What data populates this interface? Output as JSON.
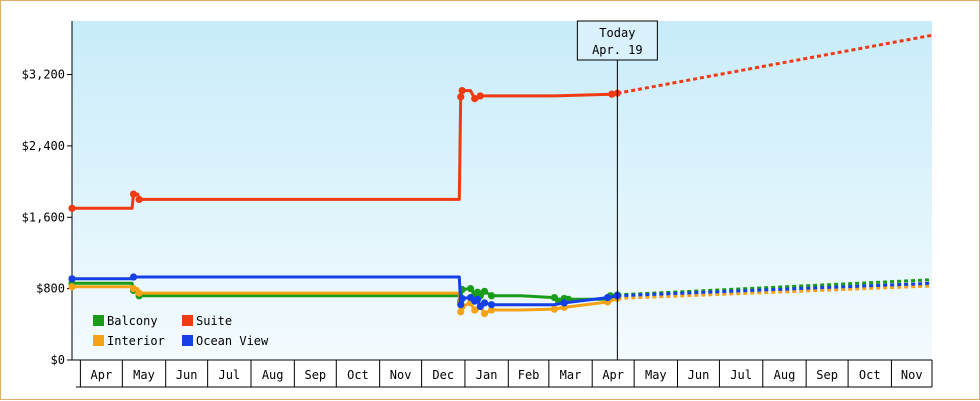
{
  "chart_data": {
    "type": "line",
    "title": "",
    "xlabel": "",
    "ylabel": "",
    "ylim": [
      0,
      3800
    ],
    "y_ticks": [
      {
        "value": 0,
        "label": "$0"
      },
      {
        "value": 800,
        "label": "$800"
      },
      {
        "value": 1600,
        "label": "$1,600"
      },
      {
        "value": 2400,
        "label": "$2,400"
      },
      {
        "value": 3200,
        "label": "$3,200"
      }
    ],
    "x_range": [
      "2023-03-26",
      "2024-11-30"
    ],
    "x_months": [
      {
        "label": "Apr",
        "start": "2023-04-01",
        "end": "2023-05-01"
      },
      {
        "label": "May",
        "start": "2023-05-01",
        "end": "2023-06-01"
      },
      {
        "label": "Jun",
        "start": "2023-06-01",
        "end": "2023-07-01"
      },
      {
        "label": "Jul",
        "start": "2023-07-01",
        "end": "2023-08-01"
      },
      {
        "label": "Aug",
        "start": "2023-08-01",
        "end": "2023-09-01"
      },
      {
        "label": "Sep",
        "start": "2023-09-01",
        "end": "2023-10-01"
      },
      {
        "label": "Oct",
        "start": "2023-10-01",
        "end": "2023-11-01"
      },
      {
        "label": "Nov",
        "start": "2023-11-01",
        "end": "2023-12-01"
      },
      {
        "label": "Dec",
        "start": "2023-12-01",
        "end": "2024-01-01"
      },
      {
        "label": "Jan",
        "start": "2024-01-01",
        "end": "2024-02-01"
      },
      {
        "label": "Feb",
        "start": "2024-02-01",
        "end": "2024-03-01"
      },
      {
        "label": "Mar",
        "start": "2024-03-01",
        "end": "2024-04-01"
      },
      {
        "label": "Apr",
        "start": "2024-04-01",
        "end": "2024-05-01"
      },
      {
        "label": "May",
        "start": "2024-05-01",
        "end": "2024-06-01"
      },
      {
        "label": "Jun",
        "start": "2024-06-01",
        "end": "2024-07-01"
      },
      {
        "label": "Jul",
        "start": "2024-07-01",
        "end": "2024-08-01"
      },
      {
        "label": "Aug",
        "start": "2024-08-01",
        "end": "2024-09-01"
      },
      {
        "label": "Sep",
        "start": "2024-09-01",
        "end": "2024-10-01"
      },
      {
        "label": "Oct",
        "start": "2024-10-01",
        "end": "2024-11-01"
      },
      {
        "label": "Nov",
        "start": "2024-11-01",
        "end": "2024-12-01"
      }
    ],
    "today": {
      "date": "2024-04-19",
      "line1": "Today",
      "line2": "Apr. 19"
    },
    "grid": false,
    "legend_position": "bottom-left",
    "series": [
      {
        "name": "Balcony",
        "color": "#1a9c1a",
        "points": [
          [
            "2023-03-26",
            860
          ],
          [
            "2023-05-08",
            860
          ],
          [
            "2023-05-09",
            780
          ],
          [
            "2023-05-12",
            780
          ],
          [
            "2023-05-13",
            720
          ],
          [
            "2023-12-28",
            720
          ],
          [
            "2023-12-29",
            660
          ],
          [
            "2023-12-30",
            790
          ],
          [
            "2024-01-05",
            800
          ],
          [
            "2024-01-08",
            740
          ],
          [
            "2024-01-10",
            760
          ],
          [
            "2024-01-12",
            720
          ],
          [
            "2024-01-15",
            770
          ],
          [
            "2024-01-20",
            720
          ],
          [
            "2024-02-10",
            720
          ],
          [
            "2024-03-05",
            700
          ],
          [
            "2024-03-08",
            660
          ],
          [
            "2024-03-12",
            690
          ],
          [
            "2024-03-15",
            680
          ],
          [
            "2024-04-12",
            680
          ],
          [
            "2024-04-14",
            720
          ],
          [
            "2024-04-19",
            730
          ]
        ],
        "forecast": [
          [
            "2024-04-19",
            730
          ],
          [
            "2024-11-30",
            900
          ]
        ]
      },
      {
        "name": "Interior",
        "color": "#f5a316",
        "points": [
          [
            "2023-03-26",
            820
          ],
          [
            "2023-05-08",
            820
          ],
          [
            "2023-05-09",
            800
          ],
          [
            "2023-05-12",
            800
          ],
          [
            "2023-05-13",
            750
          ],
          [
            "2023-12-28",
            750
          ],
          [
            "2023-12-29",
            540
          ],
          [
            "2023-12-30",
            600
          ],
          [
            "2024-01-05",
            640
          ],
          [
            "2024-01-08",
            560
          ],
          [
            "2024-01-10",
            560
          ],
          [
            "2024-01-12",
            610
          ],
          [
            "2024-01-15",
            520
          ],
          [
            "2024-01-20",
            560
          ],
          [
            "2024-02-10",
            560
          ],
          [
            "2024-03-05",
            570
          ],
          [
            "2024-03-12",
            590
          ],
          [
            "2024-04-12",
            650
          ],
          [
            "2024-04-19",
            690
          ]
        ],
        "forecast": [
          [
            "2024-04-19",
            690
          ],
          [
            "2024-11-30",
            830
          ]
        ]
      },
      {
        "name": "Suite",
        "color": "#ef3a12",
        "points": [
          [
            "2023-03-26",
            1700
          ],
          [
            "2023-05-08",
            1700
          ],
          [
            "2023-05-09",
            1860
          ],
          [
            "2023-05-12",
            1860
          ],
          [
            "2023-05-13",
            1800
          ],
          [
            "2023-12-28",
            1800
          ],
          [
            "2023-12-29",
            2950
          ],
          [
            "2023-12-30",
            3020
          ],
          [
            "2024-01-05",
            3020
          ],
          [
            "2024-01-08",
            2930
          ],
          [
            "2024-01-10",
            2930
          ],
          [
            "2024-01-12",
            2960
          ],
          [
            "2024-03-05",
            2960
          ],
          [
            "2024-04-15",
            2980
          ],
          [
            "2024-04-19",
            2990
          ]
        ],
        "forecast": [
          [
            "2024-04-19",
            2990
          ],
          [
            "2024-11-30",
            3640
          ]
        ]
      },
      {
        "name": "Ocean View",
        "color": "#1540e6",
        "points": [
          [
            "2023-03-26",
            910
          ],
          [
            "2023-05-08",
            910
          ],
          [
            "2023-05-09",
            930
          ],
          [
            "2023-05-12",
            930
          ],
          [
            "2023-12-28",
            930
          ],
          [
            "2023-12-29",
            620
          ],
          [
            "2023-12-30",
            690
          ],
          [
            "2024-01-05",
            700
          ],
          [
            "2024-01-08",
            660
          ],
          [
            "2024-01-10",
            680
          ],
          [
            "2024-01-12",
            600
          ],
          [
            "2024-01-15",
            640
          ],
          [
            "2024-01-20",
            620
          ],
          [
            "2024-02-10",
            620
          ],
          [
            "2024-03-05",
            620
          ],
          [
            "2024-03-12",
            640
          ],
          [
            "2024-04-12",
            700
          ],
          [
            "2024-04-19",
            720
          ]
        ],
        "forecast": [
          [
            "2024-04-19",
            720
          ],
          [
            "2024-11-30",
            860
          ]
        ]
      }
    ],
    "legend": [
      {
        "name": "Balcony",
        "color": "#1a9c1a"
      },
      {
        "name": "Suite",
        "color": "#ef3a12"
      },
      {
        "name": "Interior",
        "color": "#f5a316"
      },
      {
        "name": "Ocean View",
        "color": "#1540e6"
      }
    ]
  }
}
